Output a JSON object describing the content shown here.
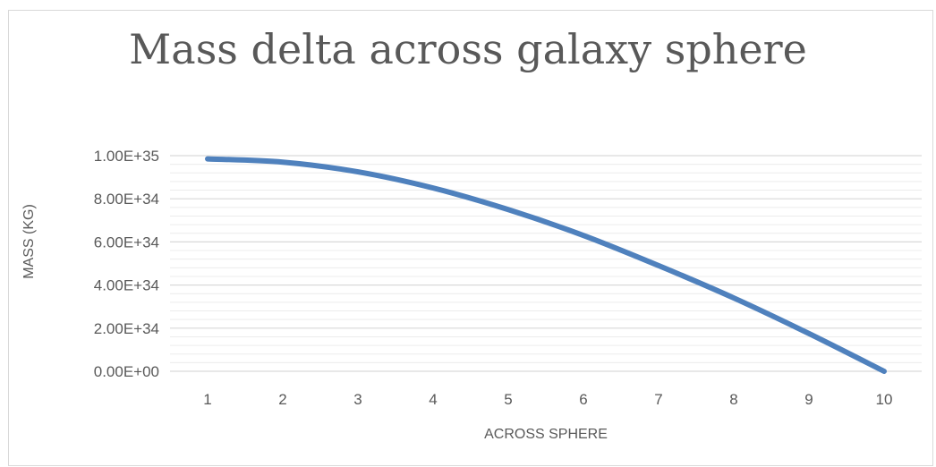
{
  "chart_data": {
    "type": "line",
    "title": "Mass delta across galaxy sphere",
    "xlabel": "ACROSS SPHERE",
    "ylabel": "MASS (KG)",
    "categories": [
      "1",
      "2",
      "3",
      "4",
      "5",
      "6",
      "7",
      "8",
      "9",
      "10"
    ],
    "series": [
      {
        "values": [
          9.85e+34,
          9.7e+34,
          9.25e+34,
          8.5e+34,
          7.5e+34,
          6.3e+34,
          4.9e+34,
          3.4e+34,
          1.75e+34,
          0
        ]
      }
    ],
    "y_ticks": [
      "0.00E+00",
      "2.00E+34",
      "4.00E+34",
      "6.00E+34",
      "8.00E+34",
      "1.00E+35"
    ],
    "ylim": [
      0,
      1e+35
    ],
    "grid": "major and minor horizontal",
    "legend": "none",
    "colors": {
      "line": "#4f81bd",
      "major_grid": "#d9d9d9",
      "minor_grid": "#ececec",
      "text": "#595959"
    }
  }
}
